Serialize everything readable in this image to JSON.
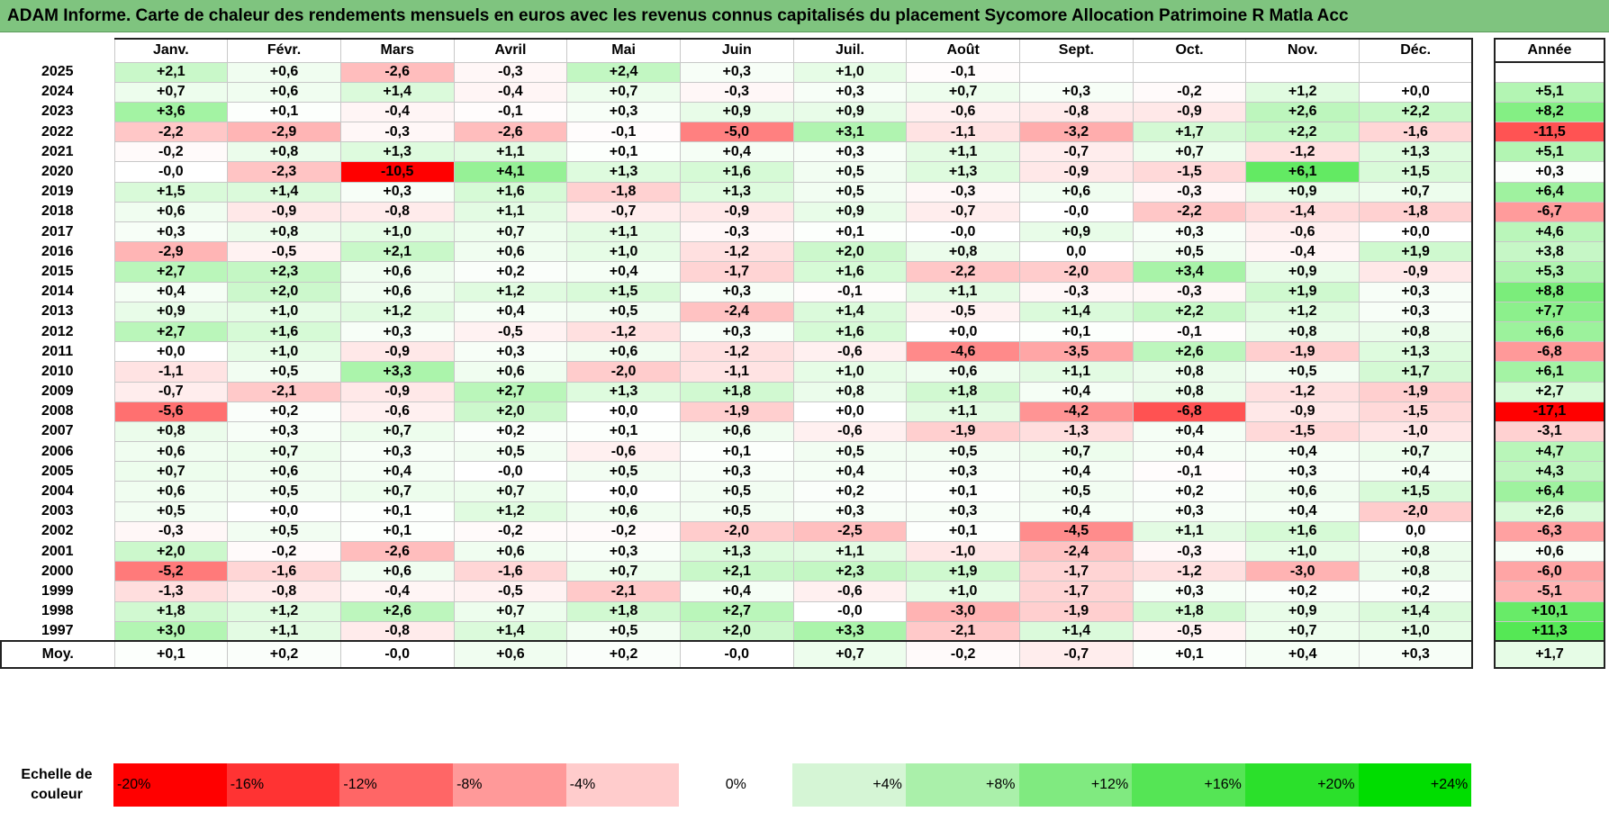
{
  "title": "ADAM Informe. Carte de chaleur des rendements mensuels en euros avec les revenus connus capitalisés du placement Sycomore Allocation Patrimoine R Matla Acc",
  "chart_data": {
    "type": "heatmap",
    "title": "ADAM Informe. Carte de chaleur des rendements mensuels en euros avec les revenus connus capitalisés du placement Sycomore Allocation Patrimoine R Matla Acc",
    "months": [
      "Janv.",
      "Févr.",
      "Mars",
      "Avril",
      "Mai",
      "Juin",
      "Juil.",
      "Août",
      "Sept.",
      "Oct.",
      "Nov.",
      "Déc."
    ],
    "year_header": "Année",
    "rows": [
      {
        "year": "2025",
        "values": [
          "+2,1",
          "+0,6",
          "-2,6",
          "-0,3",
          "+2,4",
          "+0,3",
          "+1,0",
          "-0,1",
          "",
          "",
          "",
          ""
        ],
        "annual": ""
      },
      {
        "year": "2024",
        "values": [
          "+0,7",
          "+0,6",
          "+1,4",
          "-0,4",
          "+0,7",
          "-0,3",
          "+0,3",
          "+0,7",
          "+0,3",
          "-0,2",
          "+1,2",
          "+0,0"
        ],
        "annual": "+5,1"
      },
      {
        "year": "2023",
        "values": [
          "+3,6",
          "+0,1",
          "-0,4",
          "-0,1",
          "+0,3",
          "+0,9",
          "+0,9",
          "-0,6",
          "-0,8",
          "-0,9",
          "+2,6",
          "+2,2"
        ],
        "annual": "+8,2"
      },
      {
        "year": "2022",
        "values": [
          "-2,2",
          "-2,9",
          "-0,3",
          "-2,6",
          "-0,1",
          "-5,0",
          "+3,1",
          "-1,1",
          "-3,2",
          "+1,7",
          "+2,2",
          "-1,6"
        ],
        "annual": "-11,5"
      },
      {
        "year": "2021",
        "values": [
          "-0,2",
          "+0,8",
          "+1,3",
          "+1,1",
          "+0,1",
          "+0,4",
          "+0,3",
          "+1,1",
          "-0,7",
          "+0,7",
          "-1,2",
          "+1,3"
        ],
        "annual": "+5,1"
      },
      {
        "year": "2020",
        "values": [
          "-0,0",
          "-2,3",
          "-10,5",
          "+4,1",
          "+1,3",
          "+1,6",
          "+0,5",
          "+1,3",
          "-0,9",
          "-1,5",
          "+6,1",
          "+1,5"
        ],
        "annual": "+0,3"
      },
      {
        "year": "2019",
        "values": [
          "+1,5",
          "+1,4",
          "+0,3",
          "+1,6",
          "-1,8",
          "+1,3",
          "+0,5",
          "-0,3",
          "+0,6",
          "-0,3",
          "+0,9",
          "+0,7"
        ],
        "annual": "+6,4"
      },
      {
        "year": "2018",
        "values": [
          "+0,6",
          "-0,9",
          "-0,8",
          "+1,1",
          "-0,7",
          "-0,9",
          "+0,9",
          "-0,7",
          "-0,0",
          "-2,2",
          "-1,4",
          "-1,8"
        ],
        "annual": "-6,7"
      },
      {
        "year": "2017",
        "values": [
          "+0,3",
          "+0,8",
          "+1,0",
          "+0,7",
          "+1,1",
          "-0,3",
          "+0,1",
          "-0,0",
          "+0,9",
          "+0,3",
          "-0,6",
          "+0,0"
        ],
        "annual": "+4,6"
      },
      {
        "year": "2016",
        "values": [
          "-2,9",
          "-0,5",
          "+2,1",
          "+0,6",
          "+1,0",
          "-1,2",
          "+2,0",
          "+0,8",
          "0,0",
          "+0,5",
          "-0,4",
          "+1,9"
        ],
        "annual": "+3,8"
      },
      {
        "year": "2015",
        "values": [
          "+2,7",
          "+2,3",
          "+0,6",
          "+0,2",
          "+0,4",
          "-1,7",
          "+1,6",
          "-2,2",
          "-2,0",
          "+3,4",
          "+0,9",
          "-0,9"
        ],
        "annual": "+5,3"
      },
      {
        "year": "2014",
        "values": [
          "+0,4",
          "+2,0",
          "+0,6",
          "+1,2",
          "+1,5",
          "+0,3",
          "-0,1",
          "+1,1",
          "-0,3",
          "-0,3",
          "+1,9",
          "+0,3"
        ],
        "annual": "+8,8"
      },
      {
        "year": "2013",
        "values": [
          "+0,9",
          "+1,0",
          "+1,2",
          "+0,4",
          "+0,5",
          "-2,4",
          "+1,4",
          "-0,5",
          "+1,4",
          "+2,2",
          "+1,2",
          "+0,3"
        ],
        "annual": "+7,7"
      },
      {
        "year": "2012",
        "values": [
          "+2,7",
          "+1,6",
          "+0,3",
          "-0,5",
          "-1,2",
          "+0,3",
          "+1,6",
          "+0,0",
          "+0,1",
          "-0,1",
          "+0,8",
          "+0,8"
        ],
        "annual": "+6,6"
      },
      {
        "year": "2011",
        "values": [
          "+0,0",
          "+1,0",
          "-0,9",
          "+0,3",
          "+0,6",
          "-1,2",
          "-0,6",
          "-4,6",
          "-3,5",
          "+2,6",
          "-1,9",
          "+1,3"
        ],
        "annual": "-6,8"
      },
      {
        "year": "2010",
        "values": [
          "-1,1",
          "+0,5",
          "+3,3",
          "+0,6",
          "-2,0",
          "-1,1",
          "+1,0",
          "+0,6",
          "+1,1",
          "+0,8",
          "+0,5",
          "+1,7"
        ],
        "annual": "+6,1"
      },
      {
        "year": "2009",
        "values": [
          "-0,7",
          "-2,1",
          "-0,9",
          "+2,7",
          "+1,3",
          "+1,8",
          "+0,8",
          "+1,8",
          "+0,4",
          "+0,8",
          "-1,2",
          "-1,9"
        ],
        "annual": "+2,7"
      },
      {
        "year": "2008",
        "values": [
          "-5,6",
          "+0,2",
          "-0,6",
          "+2,0",
          "+0,0",
          "-1,9",
          "+0,0",
          "+1,1",
          "-4,2",
          "-6,8",
          "-0,9",
          "-1,5"
        ],
        "annual": "-17,1"
      },
      {
        "year": "2007",
        "values": [
          "+0,8",
          "+0,3",
          "+0,7",
          "+0,2",
          "+0,1",
          "+0,6",
          "-0,6",
          "-1,9",
          "-1,3",
          "+0,4",
          "-1,5",
          "-1,0"
        ],
        "annual": "-3,1"
      },
      {
        "year": "2006",
        "values": [
          "+0,6",
          "+0,7",
          "+0,3",
          "+0,5",
          "-0,6",
          "+0,1",
          "+0,5",
          "+0,5",
          "+0,7",
          "+0,4",
          "+0,4",
          "+0,7"
        ],
        "annual": "+4,7"
      },
      {
        "year": "2005",
        "values": [
          "+0,7",
          "+0,6",
          "+0,4",
          "-0,0",
          "+0,5",
          "+0,3",
          "+0,4",
          "+0,3",
          "+0,4",
          "-0,1",
          "+0,3",
          "+0,4"
        ],
        "annual": "+4,3"
      },
      {
        "year": "2004",
        "values": [
          "+0,6",
          "+0,5",
          "+0,7",
          "+0,7",
          "+0,0",
          "+0,5",
          "+0,2",
          "+0,1",
          "+0,5",
          "+0,2",
          "+0,6",
          "+1,5"
        ],
        "annual": "+6,4"
      },
      {
        "year": "2003",
        "values": [
          "+0,5",
          "+0,0",
          "+0,1",
          "+1,2",
          "+0,6",
          "+0,5",
          "+0,3",
          "+0,3",
          "+0,4",
          "+0,3",
          "+0,4",
          "-2,0"
        ],
        "annual": "+2,6"
      },
      {
        "year": "2002",
        "values": [
          "-0,3",
          "+0,5",
          "+0,1",
          "-0,2",
          "-0,2",
          "-2,0",
          "-2,5",
          "+0,1",
          "-4,5",
          "+1,1",
          "+1,6",
          "0,0"
        ],
        "annual": "-6,3"
      },
      {
        "year": "2001",
        "values": [
          "+2,0",
          "-0,2",
          "-2,6",
          "+0,6",
          "+0,3",
          "+1,3",
          "+1,1",
          "-1,0",
          "-2,4",
          "-0,3",
          "+1,0",
          "+0,8"
        ],
        "annual": "+0,6"
      },
      {
        "year": "2000",
        "values": [
          "-5,2",
          "-1,6",
          "+0,6",
          "-1,6",
          "+0,7",
          "+2,1",
          "+2,3",
          "+1,9",
          "-1,7",
          "-1,2",
          "-3,0",
          "+0,8"
        ],
        "annual": "-6,0"
      },
      {
        "year": "1999",
        "values": [
          "-1,3",
          "-0,8",
          "-0,4",
          "-0,5",
          "-2,1",
          "+0,4",
          "-0,6",
          "+1,0",
          "-1,7",
          "+0,3",
          "+0,2",
          "+0,2"
        ],
        "annual": "-5,1"
      },
      {
        "year": "1998",
        "values": [
          "+1,8",
          "+1,2",
          "+2,6",
          "+0,7",
          "+1,8",
          "+2,7",
          "-0,0",
          "-3,0",
          "-1,9",
          "+1,8",
          "+0,9",
          "+1,4"
        ],
        "annual": "+10,1"
      },
      {
        "year": "1997",
        "values": [
          "+3,0",
          "+1,1",
          "-0,8",
          "+1,4",
          "+0,5",
          "+2,0",
          "+3,3",
          "-2,1",
          "+1,4",
          "-0,5",
          "+0,7",
          "+1,0"
        ],
        "annual": "+11,3"
      }
    ],
    "average": {
      "label": "Moy.",
      "values": [
        "+0,1",
        "+0,2",
        "-0,0",
        "+0,6",
        "+0,2",
        "-0,0",
        "+0,7",
        "-0,2",
        "-0,7",
        "+0,1",
        "+0,4",
        "+0,3"
      ],
      "annual": "+1,7"
    },
    "scale": {
      "label": "Echelle de couleur",
      "stops": [
        {
          "text": "-20%",
          "color": "#ff0000"
        },
        {
          "text": "-16%",
          "color": "#ff3333"
        },
        {
          "text": "-12%",
          "color": "#ff6666"
        },
        {
          "text": "-8%",
          "color": "#ff9999"
        },
        {
          "text": "-4%",
          "color": "#ffcccc"
        },
        {
          "text": "0%",
          "color": "#ffffff"
        },
        {
          "text": "+4%",
          "color": "#d5f5d5"
        },
        {
          "text": "+8%",
          "color": "#aaf0aa"
        },
        {
          "text": "+12%",
          "color": "#80ea80"
        },
        {
          "text": "+16%",
          "color": "#55e555"
        },
        {
          "text": "+20%",
          "color": "#2be02b"
        },
        {
          "text": "+24%",
          "color": "#00dd00"
        }
      ]
    },
    "colors": {
      "negative_max": "#ff0000",
      "neutral": "#ffffff",
      "positive_max": "#00dd00",
      "title_bar": "#7fc47f"
    }
  }
}
